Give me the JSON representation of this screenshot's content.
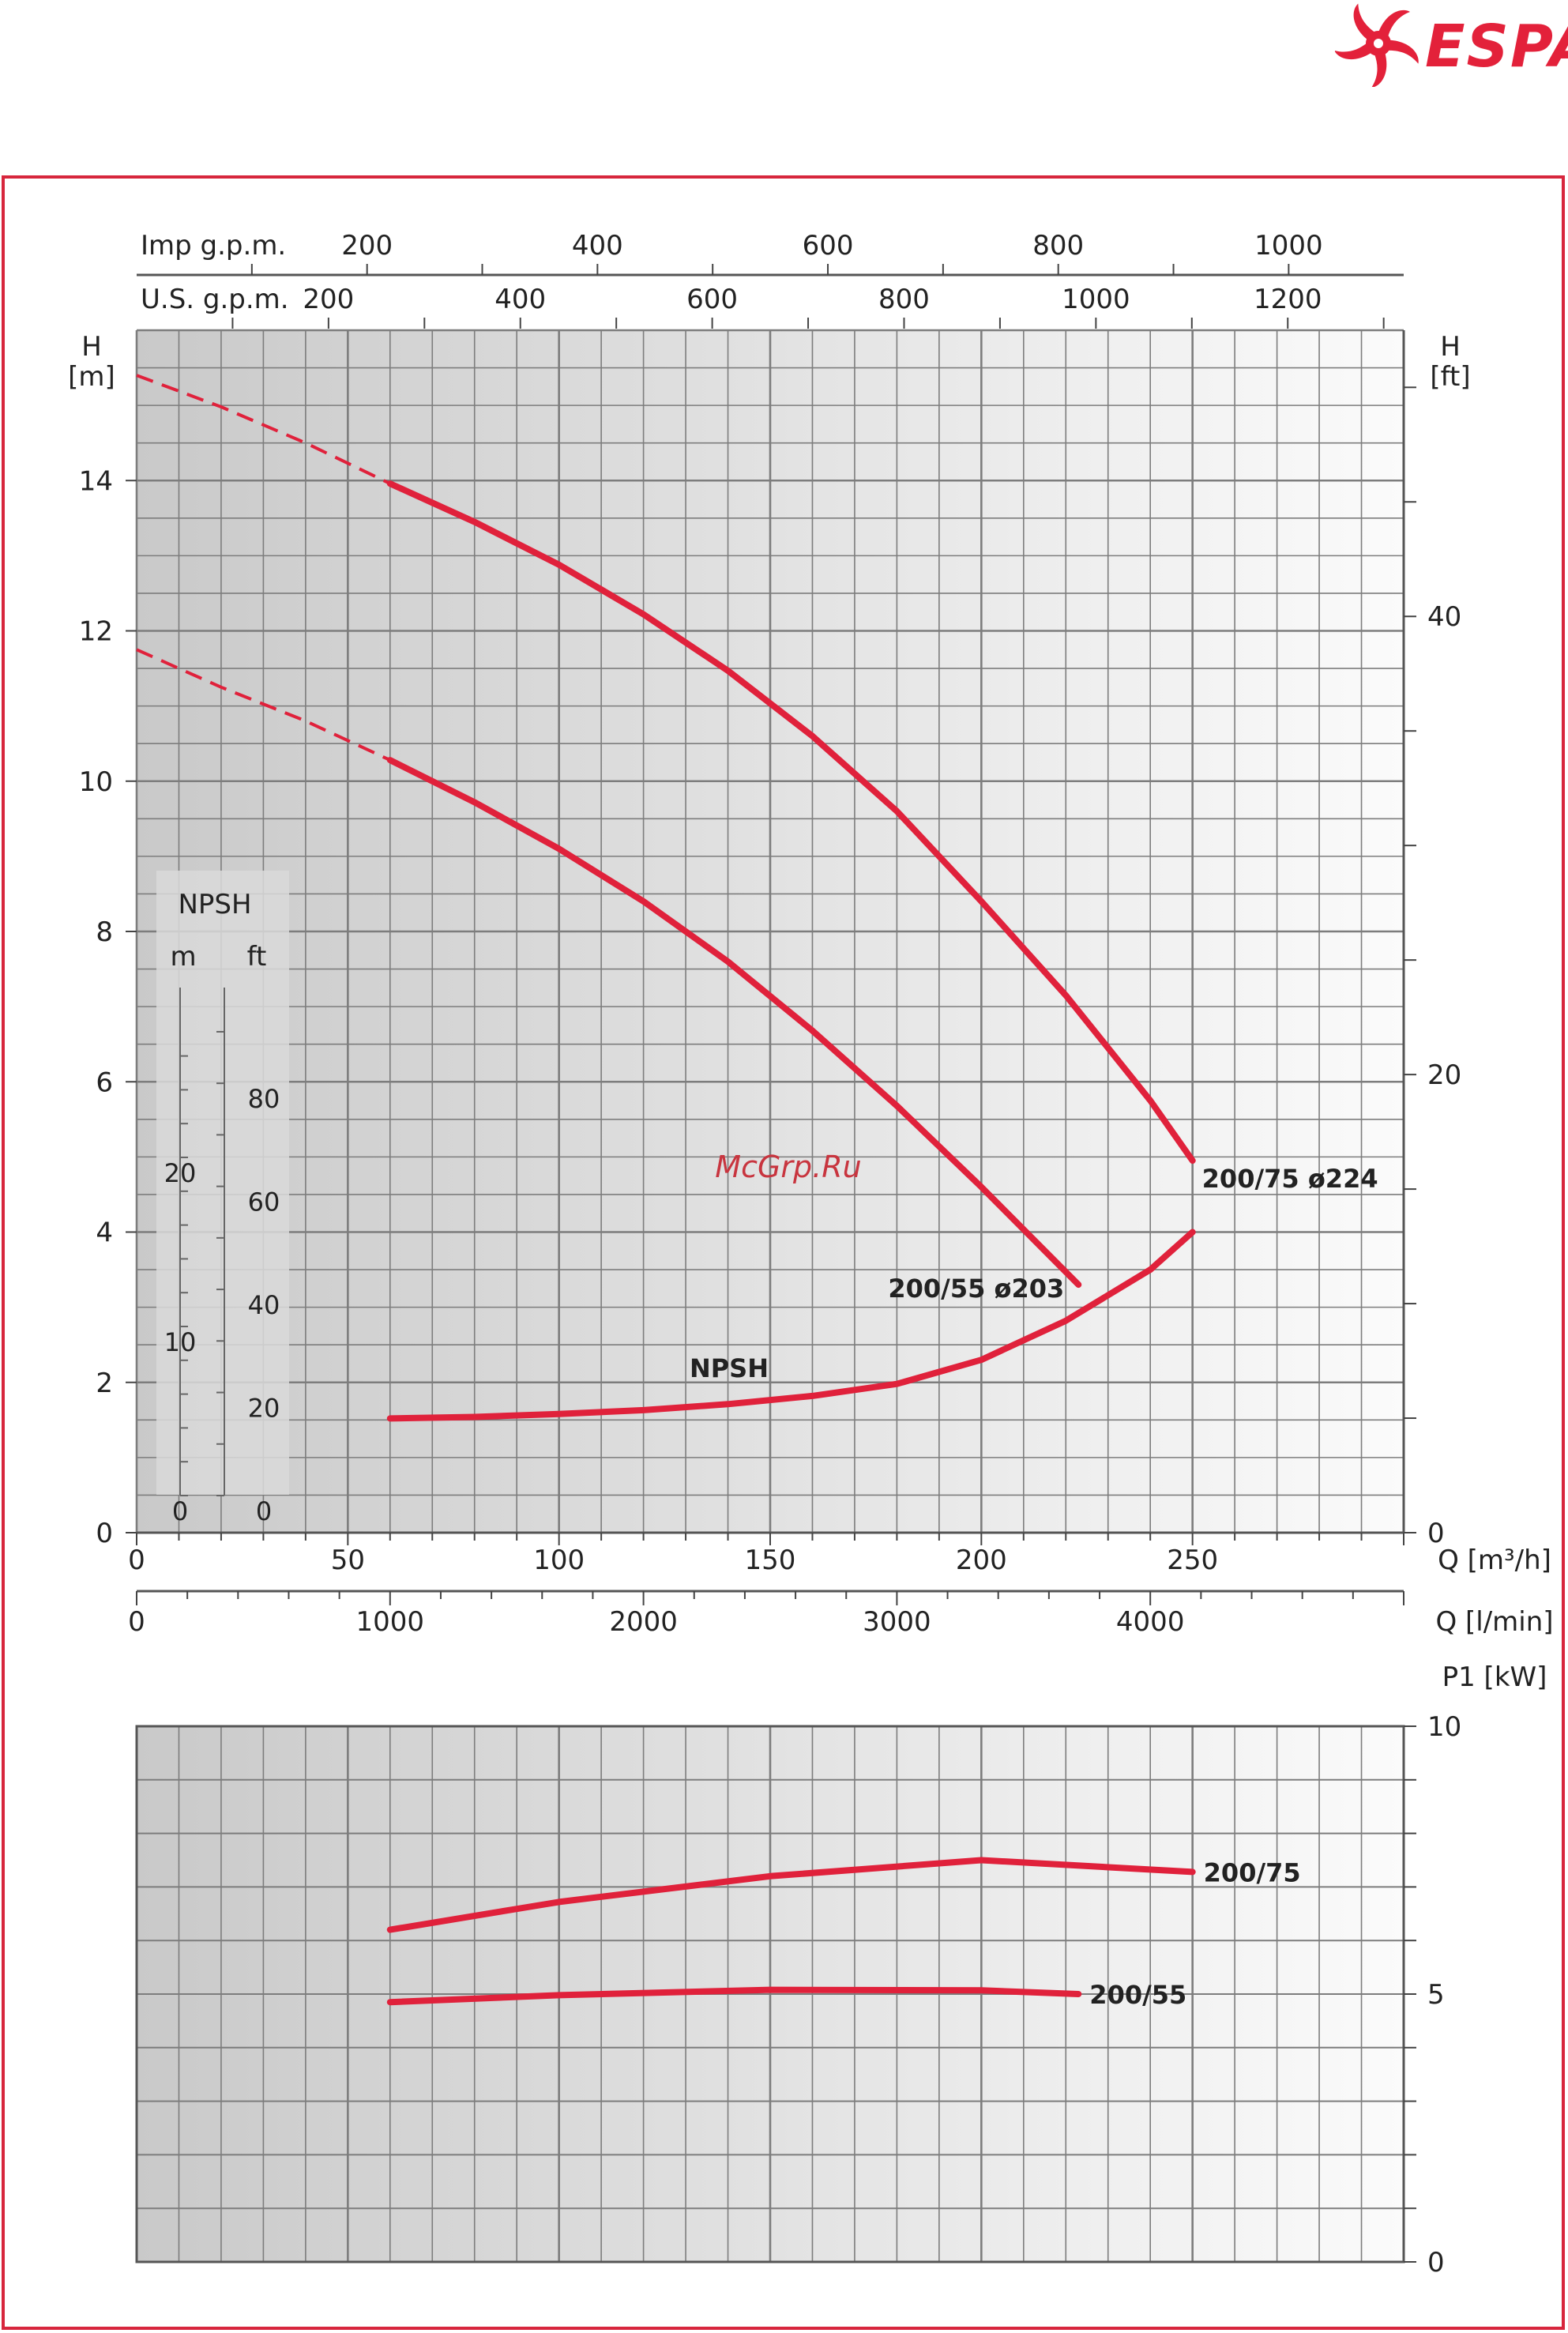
{
  "brand": {
    "name": "ESPA",
    "color": "#e3213a"
  },
  "watermark": "McGrp.Ru",
  "colors": {
    "curve": "#e0213b",
    "grid": "#7d7d7d",
    "grid_bg_dark": "#c8c8c8",
    "grid_bg_light": "#fafafa",
    "frame": "#d7263d",
    "text": "#222222"
  },
  "chart_data": [
    {
      "type": "line",
      "chart": "head-and-npsh",
      "xlabel": "Q [m³/h]",
      "ylabel": "H\n[m]",
      "ylabel_right": "H\n[ft]",
      "xlim": [
        0,
        300
      ],
      "ylim": [
        0,
        16
      ],
      "x_ticks": [
        0,
        50,
        100,
        150,
        200,
        250
      ],
      "y_ticks": [
        0,
        2,
        4,
        6,
        8,
        10,
        12,
        14
      ],
      "y_right_ticks": [
        0,
        20,
        40
      ],
      "secondary_axes": {
        "imp_gpm": {
          "label": "Imp g.p.m.",
          "ticks": [
            200,
            400,
            600,
            800,
            1000
          ]
        },
        "us_gpm": {
          "label": "U.S. g.p.m.",
          "ticks": [
            200,
            400,
            600,
            800,
            1000,
            1200
          ]
        },
        "l_min": {
          "label": "Q [l/min]",
          "ticks": [
            0,
            1000,
            2000,
            3000,
            4000
          ]
        }
      },
      "npsh_scale": {
        "title": "NPSH",
        "m_label": "m",
        "ft_label": "ft",
        "m_ticks": [
          0,
          10,
          20
        ],
        "ft_ticks": [
          0,
          20,
          40,
          60,
          80
        ]
      },
      "grid": true,
      "series": [
        {
          "name": "200/75  ø224",
          "dashed": {
            "x": [
              0,
              20,
              40,
              60
            ],
            "y": [
              15.4,
              14.98,
              14.5,
              13.96
            ]
          },
          "x": [
            60,
            80,
            100,
            120,
            140,
            160,
            180,
            200,
            220,
            240,
            250
          ],
          "y": [
            13.96,
            13.45,
            12.88,
            12.22,
            11.47,
            10.6,
            9.6,
            8.4,
            7.15,
            5.75,
            4.95
          ]
        },
        {
          "name": "200/55  ø203",
          "dashed": {
            "x": [
              0,
              20,
              40,
              60
            ],
            "y": [
              11.75,
              11.25,
              10.8,
              10.28
            ]
          },
          "x": [
            60,
            80,
            100,
            120,
            140,
            160,
            180,
            200,
            223
          ],
          "y": [
            10.28,
            9.72,
            9.1,
            8.4,
            7.6,
            6.68,
            5.68,
            4.6,
            3.3
          ]
        },
        {
          "name": "NPSH",
          "x": [
            60,
            80,
            100,
            120,
            140,
            160,
            180,
            200,
            220,
            240,
            250
          ],
          "y": [
            1.52,
            1.54,
            1.58,
            1.63,
            1.71,
            1.82,
            1.98,
            2.3,
            2.82,
            3.5,
            4.0
          ]
        }
      ]
    },
    {
      "type": "line",
      "chart": "power",
      "ylabel": "P1 [kW]",
      "xlim": [
        0,
        300
      ],
      "ylim": [
        0,
        10
      ],
      "y_ticks": [
        0,
        5,
        10
      ],
      "grid": true,
      "series": [
        {
          "name": "200/75",
          "x": [
            60,
            100,
            150,
            200,
            250
          ],
          "y": [
            6.2,
            6.72,
            7.2,
            7.5,
            7.28
          ]
        },
        {
          "name": "200/55",
          "x": [
            60,
            100,
            150,
            200,
            223
          ],
          "y": [
            4.85,
            4.98,
            5.08,
            5.07,
            5.0
          ]
        }
      ]
    }
  ]
}
